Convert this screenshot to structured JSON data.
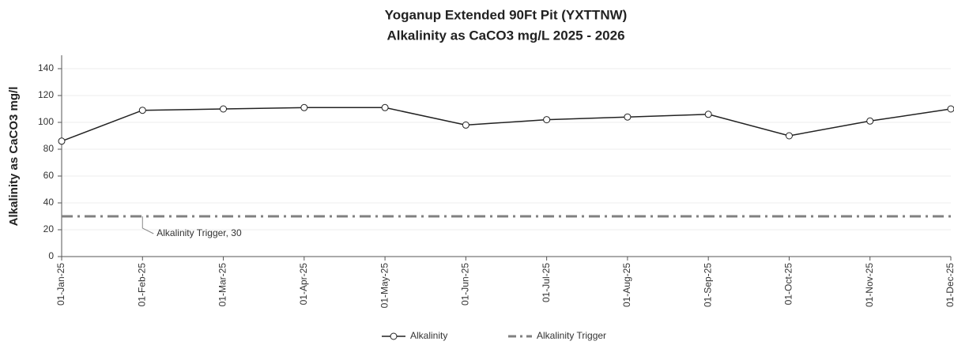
{
  "chart_data": {
    "type": "line",
    "title": "Yoganup Extended 90Ft Pit (YXTTNW)",
    "subtitle": "Alkalinity as CaCO3 mg/L 2025 - 2026",
    "y_label": "Alkalinity as CaCO3 mg/l",
    "categories": [
      "01-Jan-25",
      "01-Feb-25",
      "01-Mar-25",
      "01-Apr-25",
      "01-May-25",
      "01-Jun-25",
      "01-Jul-25",
      "01-Aug-25",
      "01-Sep-25",
      "01-Oct-25",
      "01-Nov-25",
      "01-Dec-25"
    ],
    "series": [
      {
        "name": "Alkalinity",
        "color": "#222222",
        "values": [
          86,
          109,
          110,
          111,
          111,
          98,
          102,
          104,
          106,
          90,
          101,
          110
        ]
      },
      {
        "name": "Alkalinity Trigger",
        "color": "#808080",
        "values": [
          30,
          30,
          30,
          30,
          30,
          30,
          30,
          30,
          30,
          30,
          30,
          30
        ]
      }
    ],
    "annotation": "Alkalinity Trigger, 30",
    "ylim": [
      0,
      150
    ],
    "yticks": [
      0,
      20,
      40,
      60,
      80,
      100,
      120,
      140
    ],
    "grid": true
  }
}
